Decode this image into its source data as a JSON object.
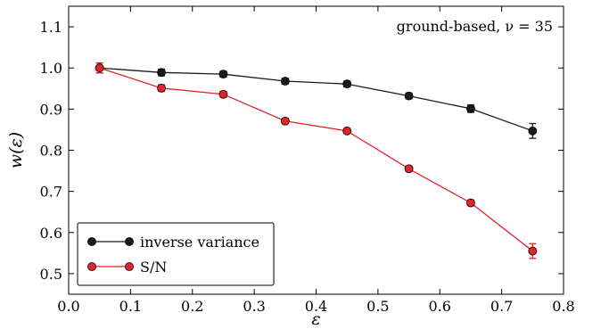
{
  "chart_data": {
    "type": "line",
    "xlabel": "ε",
    "ylabel": "w(ε)",
    "annotation": "ground-based, ν = 35",
    "xlim": [
      0.0,
      0.8
    ],
    "ylim": [
      0.45,
      1.15
    ],
    "xticks": [
      "0.0",
      "0.1",
      "0.2",
      "0.3",
      "0.4",
      "0.5",
      "0.6",
      "0.7",
      "0.8"
    ],
    "yticks": [
      "0.5",
      "0.6",
      "0.7",
      "0.8",
      "0.9",
      "1.0",
      "1.1"
    ],
    "grid": false,
    "legend_position": "bottom-left",
    "series": [
      {
        "name": "inverse variance",
        "color": "#1a1a1a",
        "x": [
          0.05,
          0.15,
          0.25,
          0.35,
          0.45,
          0.55,
          0.65,
          0.75
        ],
        "y": [
          1.0,
          0.989,
          0.985,
          0.968,
          0.961,
          0.932,
          0.901,
          0.847
        ],
        "err": [
          0.012,
          0.008,
          0.007,
          0.007,
          0.007,
          0.007,
          0.009,
          0.018
        ]
      },
      {
        "name": "S/N",
        "color": "#e0262b",
        "x": [
          0.05,
          0.15,
          0.25,
          0.35,
          0.45,
          0.55,
          0.65,
          0.75
        ],
        "y": [
          1.0,
          0.951,
          0.936,
          0.871,
          0.847,
          0.755,
          0.672,
          0.555
        ],
        "err": [
          0.012,
          0.008,
          0.007,
          0.006,
          0.006,
          0.006,
          0.007,
          0.018
        ]
      }
    ]
  }
}
